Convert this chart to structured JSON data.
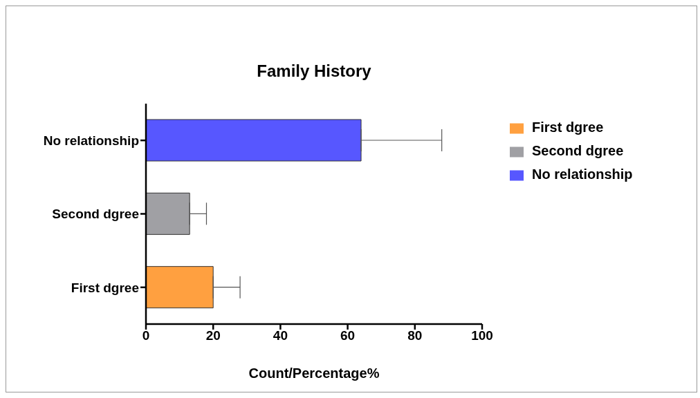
{
  "chart_data": {
    "type": "bar",
    "orientation": "horizontal",
    "stacked": true,
    "title": "Family History",
    "xlabel": "Count/Percentage%",
    "categories": [
      "No relationship",
      "Second dgree",
      "First dgree"
    ],
    "series": [
      {
        "name": "First dgree",
        "color": "#ffa040",
        "values": [
          null,
          null,
          20
        ],
        "errors": [
          null,
          null,
          [
            20,
            28
          ]
        ]
      },
      {
        "name": "Second dgree",
        "color": "#a0a0a4",
        "values": [
          null,
          13,
          null
        ],
        "errors": [
          null,
          [
            13,
            18
          ],
          null
        ]
      },
      {
        "name": "No relationship",
        "color": "#5757ff",
        "values": [
          64,
          null,
          null
        ],
        "errors": [
          [
            64,
            88
          ],
          null,
          null
        ]
      }
    ],
    "xlim": [
      0,
      100
    ],
    "xticks": [
      0,
      20,
      40,
      60,
      80,
      100
    ],
    "grid": false,
    "legend": "top right"
  }
}
